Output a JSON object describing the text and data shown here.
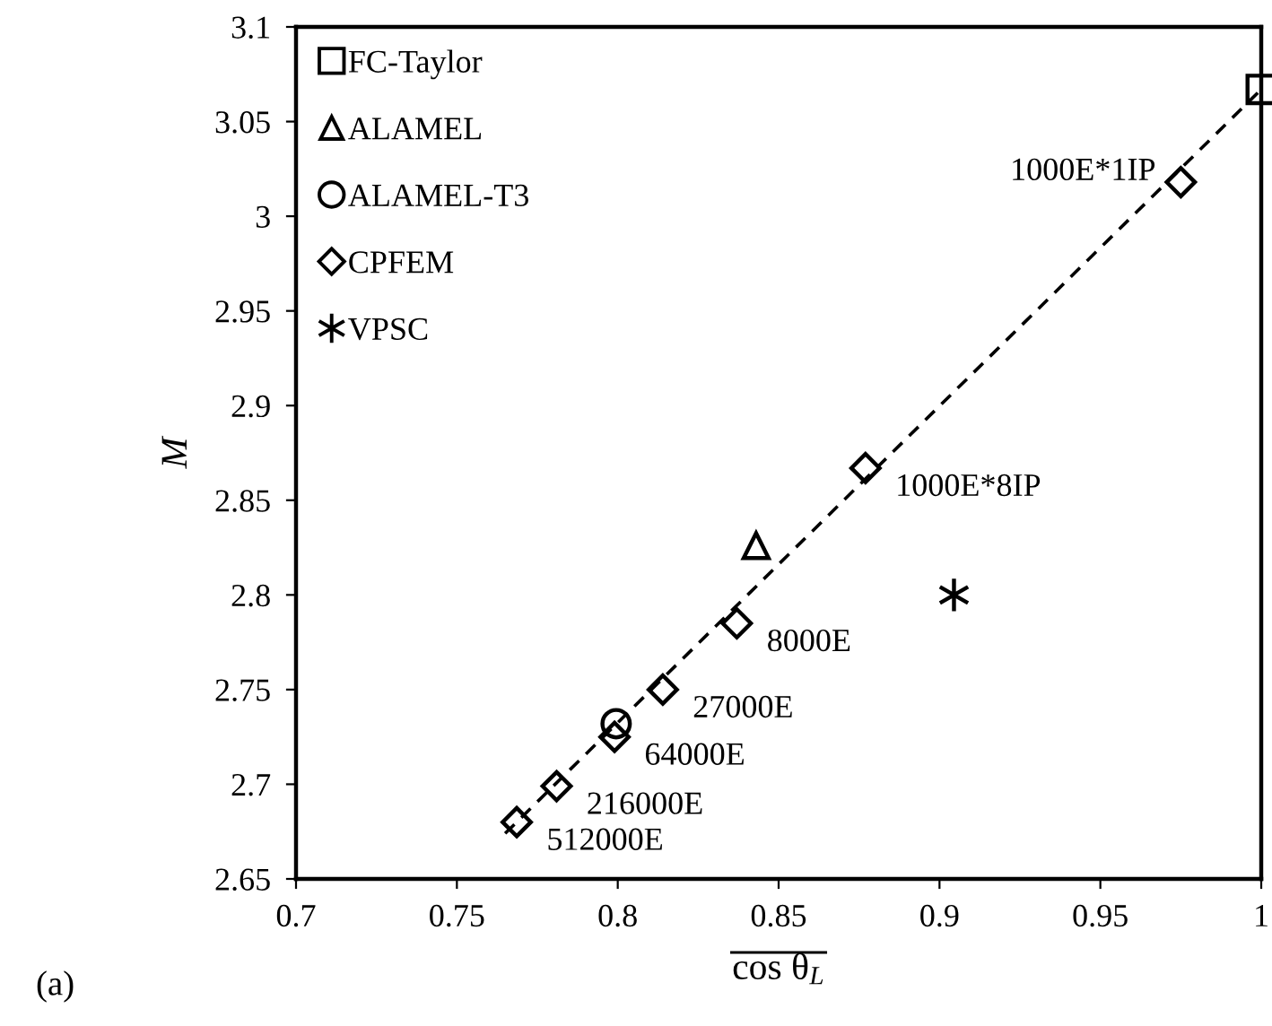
{
  "chart_data": {
    "type": "scatter",
    "xlabel": "cos θ$_{L}$",
    "ylabel": "M",
    "xlim": [
      0.7,
      1.0
    ],
    "ylim": [
      2.65,
      3.1
    ],
    "xticks": [
      0.7,
      0.75,
      0.8,
      0.85,
      0.9,
      0.95,
      1
    ],
    "yticks": [
      2.65,
      2.7,
      2.75,
      2.8,
      2.85,
      2.9,
      2.95,
      3,
      3.05,
      3.1
    ],
    "grid": false,
    "legend": "top left",
    "series": [
      {
        "name": "FC-Taylor",
        "color": "#000000",
        "marker": "square",
        "x": [
          1.0
        ],
        "values": [
          3.067
        ]
      },
      {
        "name": "ALAMEL",
        "color": "#000000",
        "marker": "triangle",
        "x": [
          0.843
        ],
        "values": [
          2.826
        ]
      },
      {
        "name": "ALAMEL-T3",
        "color": "#000000",
        "marker": "circle",
        "x": [
          0.7995
        ],
        "values": [
          2.732
        ]
      },
      {
        "name": "CPFEM",
        "color": "#000000",
        "marker": "diamond",
        "x": [
          0.975,
          0.877,
          0.837,
          0.814,
          0.799,
          0.781,
          0.7686
        ],
        "values": [
          3.018,
          2.867,
          2.785,
          2.75,
          2.725,
          2.699,
          2.68
        ]
      },
      {
        "name": "VPSC",
        "color": "#000000",
        "marker": "cross",
        "x": [
          0.9045
        ],
        "values": [
          2.8
        ]
      },
      {
        "type": "line",
        "color": "#000000",
        "line_style": "dashed",
        "marker": "none",
        "x": [
          0.765,
          1.0
        ],
        "values": [
          2.674,
          3.067
        ]
      }
    ],
    "annotations": [
      {
        "text": "1000E*1IP",
        "x": 0.975,
        "y": 3.018
      },
      {
        "text": "1000E*8IP",
        "x": 0.877,
        "y": 2.867
      },
      {
        "text": "8000E",
        "x": 0.837,
        "y": 2.785
      },
      {
        "text": "27000E",
        "x": 0.814,
        "y": 2.75
      },
      {
        "text": "64000E",
        "x": 0.799,
        "y": 2.725
      },
      {
        "text": "216000E",
        "x": 0.781,
        "y": 2.699
      },
      {
        "text": "512000E",
        "x": 0.7686,
        "y": 2.68
      },
      "(a)"
    ]
  }
}
